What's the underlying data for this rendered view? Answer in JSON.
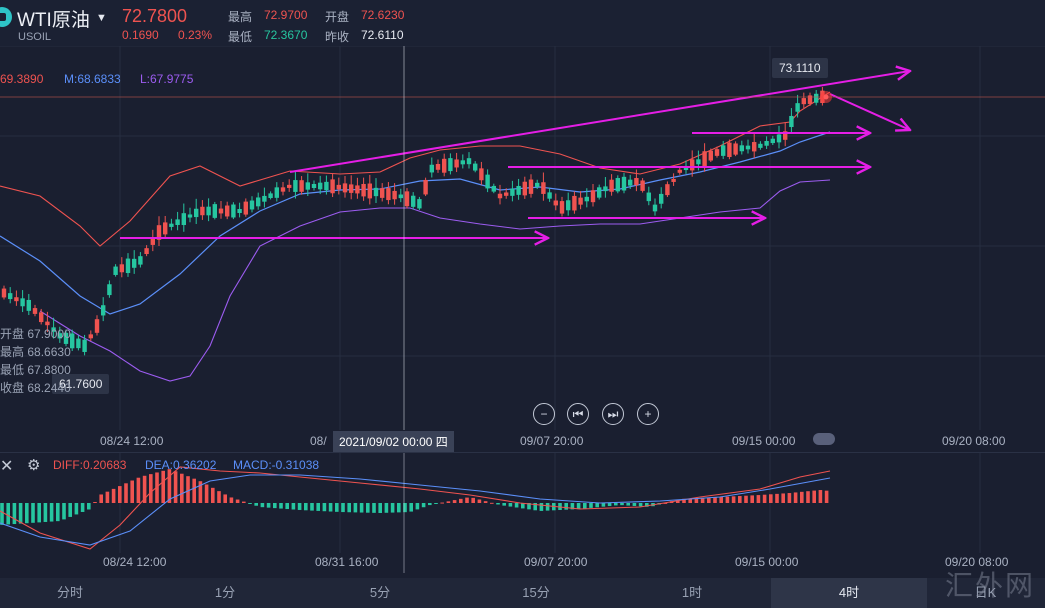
{
  "header": {
    "symbol": "WTI原油",
    "code": "USOIL",
    "price": "72.7800",
    "change": "0.1690",
    "change_pct": "0.23%",
    "quote": [
      {
        "label": "最高",
        "value": "72.9700",
        "color": "#ef5350"
      },
      {
        "label": "开盘",
        "value": "72.6230",
        "color": "#ef5350"
      },
      {
        "label": "最低",
        "value": "72.3670",
        "color": "#26c6a0"
      },
      {
        "label": "昨收",
        "value": "72.6110",
        "color": "#e8ebf2"
      }
    ]
  },
  "indicators": {
    "upper": "69.3890",
    "mid": "M:68.6833",
    "lower": "L:67.9775"
  },
  "ohlc_panel": [
    {
      "label": "开盘",
      "value": "67.9000"
    },
    {
      "label": "最高",
      "value": "68.6630"
    },
    {
      "label": "最低",
      "value": "67.8800"
    },
    {
      "label": "收盘",
      "value": "68.2440"
    }
  ],
  "tooltip_high": "73.1110",
  "tooltip_low": "61.7600",
  "crosshair_label": "2021/09/02 00:00 四",
  "axis_main": [
    "08/24 12:00",
    "08/",
    "09/07 20:00",
    "09/15 00:00",
    "09/20 08:00"
  ],
  "axis_macd": [
    "08/24 12:00",
    "08/31 16:00",
    "09/07 20:00",
    "09/15 00:00",
    "09/20 08:00"
  ],
  "macd": {
    "diff": "DIFF:0.20683",
    "dea": "DEA:0.36202",
    "macd": "MACD:-0.31038"
  },
  "timeframes": [
    {
      "label": "分时",
      "selected": false
    },
    {
      "label": "1分",
      "selected": false
    },
    {
      "label": "5分",
      "selected": false
    },
    {
      "label": "15分",
      "selected": false
    },
    {
      "label": "1时",
      "selected": false
    },
    {
      "label": "4时",
      "selected": true
    },
    {
      "label": "日K",
      "selected": false
    }
  ],
  "watermark": "汇外网",
  "colors": {
    "up": "#ef5350",
    "down": "#26c6a0",
    "upper": "#ef5350",
    "mid": "#5b8ff9",
    "lower": "#9c5cf0",
    "trend": "#e51ee6"
  },
  "chart_data": {
    "type": "candlestick",
    "series": [
      {
        "name": "M",
        "values": [
          68.6833
        ]
      },
      {
        "name": "L",
        "values": [
          67.9775
        ]
      }
    ],
    "annotated_values": {
      "high": 73.111,
      "low": 61.76
    }
  }
}
